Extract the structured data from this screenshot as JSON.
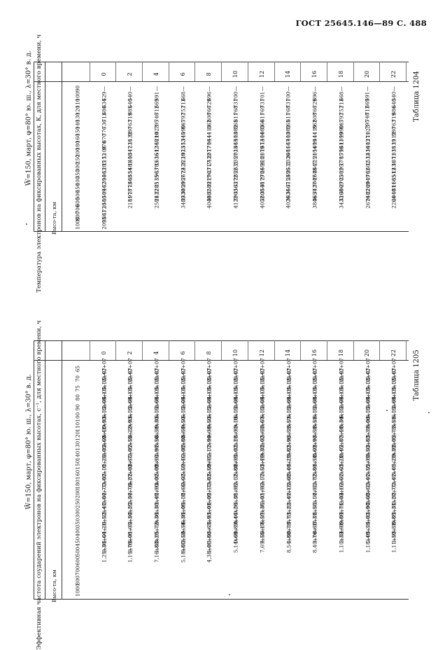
{
  "header": "ГОСТ 25645.146—89 С. 488",
  "table1": {
    "label": "Таблица 1204",
    "condition": "W̄=150, март, φ=80° ю. ш., λ=30° в. д.",
    "caption": "Температура электронов на фиксированных высотах, К, для местного времени, ч",
    "height_header": "Высо-та, км",
    "columns": [
      "0",
      "2",
      "4",
      "6",
      "8",
      "10",
      "12",
      "14",
      "16",
      "18",
      "20",
      "22"
    ],
    "heights": [
      "90",
      "100",
      "110",
      "120",
      "130",
      "140",
      "150",
      "160",
      "180",
      "200",
      "250",
      "300",
      "350",
      "400",
      "450",
      "500",
      "600",
      "700",
      "800",
      "1000"
    ],
    "values": [
      [
        "—",
        "529",
        "634",
        "680",
        "713",
        "736",
        "776",
        "870",
        "976",
        "1108",
        "1152",
        "1285",
        "1363",
        "1394",
        "1462",
        "1509",
        "1580",
        "1720",
        "1861",
        "2095"
      ],
      [
        "—",
        "540",
        "640",
        "685",
        "719",
        "763",
        "980",
        "1132",
        "1238",
        "1347",
        "1408",
        "1481",
        "1554",
        "1668",
        "1773",
        "1978",
        "2181",
        "",
        "",
        ""
      ],
      [
        "—",
        "591",
        "669",
        "712",
        "746",
        "795",
        "1023",
        "1210",
        "1368",
        "1512",
        "1636",
        "1783",
        "1963",
        "2135",
        "2285",
        "2432",
        "2591",
        "",
        "",
        ""
      ],
      [
        "—",
        "668",
        "713",
        "752",
        "792",
        "845",
        "1090",
        "1345",
        "1553",
        "1923",
        "2220",
        "2426",
        "2672",
        "2957",
        "3050",
        "3330",
        "3489",
        "",
        "",
        ""
      ],
      [
        "—",
        "696",
        "729",
        "766",
        "808",
        "862",
        "1113",
        "1444",
        "1706",
        "2077",
        "2432",
        "2717",
        "2963",
        "3217",
        "3589",
        "3882",
        "4040",
        "",
        "",
        ""
      ],
      [
        "—",
        "700",
        "731",
        "768",
        "811",
        "865",
        "1082",
        "1403",
        "1665",
        "2023",
        "2357",
        "2631",
        "2852",
        "3272",
        "3563",
        "3903",
        "4122",
        "",
        "",
        ""
      ],
      [
        "—",
        "701",
        "731",
        "769",
        "811",
        "866",
        "1083",
        "1404",
        "1673",
        "2079",
        "2281",
        "2594",
        "2784",
        "3179",
        "3548",
        "3808",
        "4052",
        "",
        "",
        ""
      ],
      [
        "—",
        "700",
        "731",
        "768",
        "811",
        "865",
        "1082",
        "1403",
        "1667",
        "2081",
        "2336",
        "2531",
        "2696",
        "3153",
        "3567",
        "3834",
        "4026",
        "",
        "",
        ""
      ],
      [
        "—",
        "696",
        "729",
        "766",
        "808",
        "862",
        "1119",
        "1444",
        "1699",
        "2054",
        "2251",
        "2647",
        "2648",
        "3047",
        "3427",
        "3657",
        "3846",
        "",
        "",
        ""
      ],
      [
        "—",
        "668",
        "713",
        "752",
        "792",
        "845",
        "1090",
        "1399",
        "1611",
        "1798",
        "1785",
        "1957",
        "2302",
        "2705",
        "3069",
        "3268",
        "3433",
        "",
        "",
        ""
      ],
      [
        "—",
        "591",
        "669",
        "712",
        "748",
        "795",
        "1023",
        "1271",
        "1403",
        "1436",
        "1532",
        "1602",
        "1762",
        "2049",
        "2269",
        "2482",
        "2676",
        "",
        "",
        ""
      ],
      [
        "—",
        "540",
        "640",
        "686",
        "719",
        "763",
        "980",
        "1112",
        "1139",
        "1338",
        "1371",
        "1434",
        "1512",
        "1665",
        "1811",
        "2040",
        "2264",
        "",
        "",
        ""
      ]
    ]
  },
  "table2": {
    "label": "Таблица 1205",
    "condition": "W̄=150, март, φ=80° ю. ш., λ=30° в. д.",
    "caption": "Эффективная частота соударений электронов на фиксированных высотах, с⁻¹, для местного времени, ч",
    "height_header": "Высо-та, км",
    "columns": [
      "0",
      "2",
      "4",
      "6",
      "8",
      "10",
      "12",
      "14",
      "16",
      "18",
      "20",
      "22"
    ],
    "heights": [
      "65",
      "70",
      "75",
      "80",
      "90",
      "100",
      "110",
      "120",
      "130",
      "140",
      "150",
      "160",
      "180",
      "200",
      "250",
      "300",
      "350",
      "400",
      "450",
      "500",
      "600",
      "700",
      "800",
      "1000"
    ],
    "values": [
      [
        "2,42+07",
        "1,12+07",
        "5,13+06",
        "2,69+05",
        "6,15+04",
        "9,93+03",
        "8,41+03",
        "3,69+03",
        "2,05+03",
        "1,29+03",
        "5,18+02",
        "3,80+02",
        "2,77+02",
        "2,84+02",
        "2,41+02",
        "1,52+02",
        "1,21+02",
        "1,64+01",
        "2,36+01",
        "1,29+01",
        "",
        "",
        "",
        ""
      ],
      [
        "2,42+07",
        "1,12+07",
        "5,13+06",
        "2,69+05",
        "6,15+04",
        "9,93+03",
        "8,22+03",
        "3,55+03",
        "2,05+03",
        "8,67+02",
        "5,03+02",
        "4,27+02",
        "2,78+02",
        "2,34+02",
        "2,25+02",
        "1,34+02",
        "1,05+02",
        "4,08+01",
        "2,78+01",
        "1,19+01",
        "",
        "",
        "",
        ""
      ],
      [
        "2,42+07",
        "1,12+07",
        "5,13+06",
        "2,69+05",
        "6,15+04",
        "9,30+03",
        "8,34+03",
        "3,56+03",
        "1,94+03",
        "8,86+02",
        "5,09+02",
        "4,00+02",
        "1,90+02",
        "1,49+02",
        "1,30+02",
        "9,36+01",
        "5,72+01",
        "3,25+01",
        "1,83+01",
        "7,16+00",
        "",
        "",
        "",
        ""
      ],
      [
        "2,42+07",
        "1,12+07",
        "5,13+06",
        "2,69+05",
        "6,15+04",
        "9,50+03",
        "8,84+03",
        "3,80+03",
        "2,08+03",
        "9,46+02",
        "5,51+02",
        "3,60+02",
        "1,64+02",
        "1,18+02",
        "1,08+02",
        "6,38+01",
        "4,34+01",
        "2,52+01",
        "8,81+00",
        "5,18+00",
        "",
        "",
        "",
        ""
      ],
      [
        "2,42+07",
        "1,12+07",
        "5,13+06",
        "2,69+05",
        "6,15+04",
        "9,50+03",
        "9,04+03",
        "3,94+03",
        "2,17+03",
        "9,95+02",
        "5,50+02",
        "3,83+02",
        "1,57+02",
        "1,09+02",
        "1,01+02",
        "5,93+01",
        "3,65+01",
        "1,86+01",
        "1,01+01",
        "4,38+00",
        "",
        "",
        "",
        ""
      ],
      [
        "2,42+07",
        "1,12+07",
        "5,13+06",
        "2,69+05",
        "6,15+04",
        "9,18+03",
        "4,00+03",
        "2,21+03",
        "1,02+03",
        "6,08+02",
        "5,80+02",
        "2,12+02",
        "1,98+02",
        "1,38+02",
        "9,26+01",
        "4,44+01",
        "1,89+01",
        "9,69+00",
        "5,14+00",
        "",
        "",
        "",
        "",
        ""
      ],
      [
        "2,42+07",
        "1,12+07",
        "5,13+06",
        "2,69+05",
        "6,15+04",
        "8,67+03",
        "3,68+03",
        "2,02+03",
        "9,30+02",
        "5,49+02",
        "3,53+02",
        "3,17+02",
        "1,96+02",
        "2,03+02",
        "8,38+01",
        "6,55+01",
        "3,17+01",
        "1,55+01",
        "7,69+00",
        "",
        "",
        "",
        "",
        ""
      ],
      [
        "2,42+07",
        "1,12+07",
        "5,13+06",
        "2,69+05",
        "6,15+04",
        "8,57+03",
        "3,58+03",
        "1,96+03",
        "8,82+02",
        "5,25+02",
        "3,44+02",
        "2,68+02",
        "3,13+02",
        "1,41+02",
        "1,22+02",
        "7,73+01",
        "3,78+01",
        "1,80+01",
        "8,54+00",
        "",
        "",
        "",
        "",
        ""
      ],
      [
        "2,42+07",
        "1,12+07",
        "5,13+06",
        "2,69+05",
        "6,15+04",
        "8,51+03",
        "3,54+03",
        "1,94+03",
        "8,69+02",
        "5,54+02",
        "3,84+02",
        "2,72+02",
        "2,92+02",
        "2,14+02",
        "1,50+02",
        "7,31+01",
        "3,61+01",
        "1,74+01",
        "8,40+00",
        "",
        "",
        "",
        "",
        ""
      ],
      [
        "2,42+07",
        "1,12+07",
        "5,13+06",
        "2,69+05",
        "6,15+04",
        "8,34+03",
        "3,44+03",
        "1,87+03",
        "8,45+02",
        "5,21+02",
        "3,63+02",
        "2,61+02",
        "4,16+02",
        "2,03+02",
        "1,71+02",
        "9,89+01",
        "4,91+01",
        "2,32+01",
        "1,10+01",
        "",
        "",
        "",
        "",
        ""
      ],
      [
        "2,42+07",
        "1,12+07",
        "5,13+06",
        "2,69+05",
        "6,15+04",
        "8,06+03",
        "3,39+03",
        "1,83+03",
        "8,50+02",
        "5,09+02",
        "3,55+02",
        "3,41+02",
        "3,62+02",
        "2,68+02",
        "1,94+02",
        "1,02+02",
        "5,38+01",
        "2,49+01",
        "1,18+01",
        "",
        "",
        "",
        "",
        ""
      ],
      [
        "2,42+07",
        "1,12+07",
        "5,13+06",
        "2,69+05",
        "6,15+04",
        "8,51+03",
        "3,75+03",
        "2,05+03",
        "9,39+02",
        "5,29+02",
        "3,41+02",
        "2,41+02",
        "2,77+02",
        "2,20+02",
        "1,31+02",
        "9,85+01",
        "3,51+01",
        "1,59+01",
        "1,11+01",
        "",
        "",
        "",
        "",
        ""
      ]
    ]
  }
}
